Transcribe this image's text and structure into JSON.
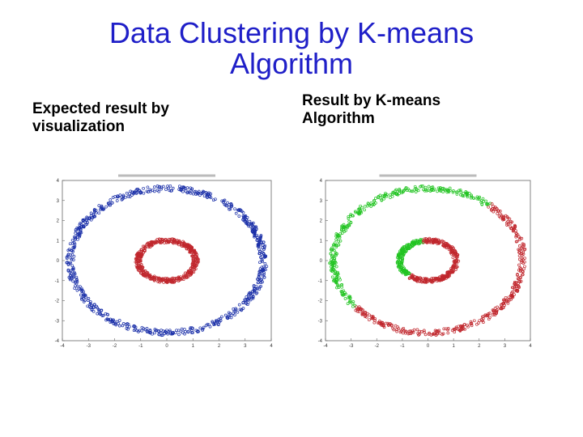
{
  "slide": {
    "title_line1": "Data Clustering by K-means",
    "title_line2": "Algorithm",
    "left_caption_line1": "Expected result by",
    "left_caption_line2": "visualization",
    "right_caption_line1": "Result by K-means",
    "right_caption_line2": "Algorithm"
  },
  "chart_data": [
    {
      "type": "scatter",
      "title": "",
      "xlim": [
        -4,
        4
      ],
      "ylim": [
        -4,
        4
      ],
      "x_ticks": [
        "-4",
        "-3",
        "-2",
        "-1",
        "0",
        "1",
        "2",
        "3",
        "4"
      ],
      "y_ticks": [
        "4",
        "3",
        "2",
        "1",
        "0",
        "-1",
        "-2",
        "-3",
        "-4"
      ],
      "grid": false,
      "series": [
        {
          "shape": "ring",
          "center": [
            0,
            0
          ],
          "radius_x": 3.7,
          "radius_y": 3.6,
          "color": "#1a2fa8",
          "segments": [
            [
              0,
              360
            ]
          ]
        },
        {
          "shape": "ring",
          "center": [
            0,
            0
          ],
          "radius_x": 1.1,
          "radius_y": 1.0,
          "color": "#c0272d",
          "segments": [
            [
              0,
              360
            ]
          ]
        }
      ]
    },
    {
      "type": "scatter",
      "title": "",
      "xlim": [
        -4,
        4
      ],
      "ylim": [
        -4,
        4
      ],
      "x_ticks": [
        "-4",
        "-3",
        "-2",
        "-1",
        "0",
        "1",
        "2",
        "3",
        "4"
      ],
      "y_ticks": [
        "4",
        "3",
        "2",
        "1",
        "0",
        "-1",
        "-2",
        "-3",
        "-4"
      ],
      "grid": false,
      "series": [
        {
          "shape": "ring",
          "center": [
            0,
            0
          ],
          "radius_x": 3.7,
          "radius_y": 3.6,
          "color": "#22c422",
          "segments": [
            [
              50,
              220
            ]
          ]
        },
        {
          "shape": "ring",
          "center": [
            0,
            0
          ],
          "radius_x": 3.7,
          "radius_y": 3.6,
          "color": "#c0272d",
          "segments": [
            [
              220,
              410
            ]
          ]
        },
        {
          "shape": "ring",
          "center": [
            0,
            0
          ],
          "radius_x": 1.1,
          "radius_y": 1.0,
          "color": "#22c422",
          "segments": [
            [
              100,
              230
            ]
          ]
        },
        {
          "shape": "ring",
          "center": [
            0,
            0
          ],
          "radius_x": 1.1,
          "radius_y": 1.0,
          "color": "#c0272d",
          "segments": [
            [
              230,
              460
            ]
          ]
        }
      ]
    }
  ]
}
